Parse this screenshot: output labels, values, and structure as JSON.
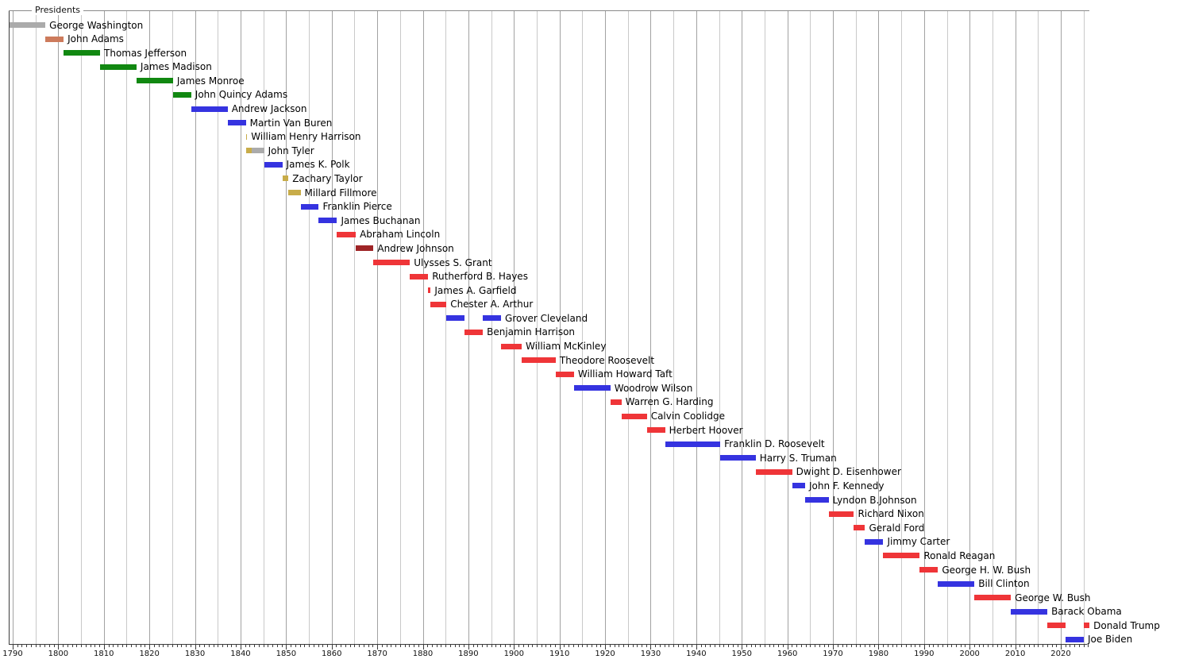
{
  "chart_data": {
    "type": "gantt",
    "title": "Presidents",
    "x_axis": {
      "min": 1789.1,
      "max": 2026.2,
      "decade_labels": [
        "1790",
        "1800",
        "1810",
        "1820",
        "1830",
        "1840",
        "1850",
        "1860",
        "1870",
        "1880",
        "1890",
        "1900",
        "1910",
        "1920",
        "1930",
        "1940",
        "1950",
        "1960",
        "1970",
        "1980",
        "1990",
        "2000",
        "2010",
        "2020"
      ],
      "gridline_interval_years": 5,
      "minor_tick_interval_years": 1,
      "grid_on": true
    },
    "palette": {
      "unaffiliated": "#ababab",
      "federalist": "#cd7b5c",
      "democratic_republican": "#118811",
      "democratic": "#3533e0",
      "whig": "#c8ac49",
      "republican": "#ef3538",
      "national_union": "#9e2426"
    },
    "presidents": [
      {
        "name": "George Washington",
        "terms": [
          {
            "start": 1789.33,
            "end": 1797.17,
            "party": "unaffiliated"
          }
        ]
      },
      {
        "name": "John Adams",
        "terms": [
          {
            "start": 1797.17,
            "end": 1801.17,
            "party": "federalist"
          }
        ]
      },
      {
        "name": "Thomas Jefferson",
        "terms": [
          {
            "start": 1801.17,
            "end": 1809.17,
            "party": "democratic_republican"
          }
        ]
      },
      {
        "name": "James Madison",
        "terms": [
          {
            "start": 1809.17,
            "end": 1817.17,
            "party": "democratic_republican"
          }
        ]
      },
      {
        "name": "James Monroe",
        "terms": [
          {
            "start": 1817.17,
            "end": 1825.17,
            "party": "democratic_republican"
          }
        ]
      },
      {
        "name": "John Quincy Adams",
        "terms": [
          {
            "start": 1825.17,
            "end": 1829.17,
            "party": "democratic_republican"
          }
        ]
      },
      {
        "name": "Andrew Jackson",
        "terms": [
          {
            "start": 1829.17,
            "end": 1837.17,
            "party": "democratic"
          }
        ]
      },
      {
        "name": "Martin Van Buren",
        "terms": [
          {
            "start": 1837.17,
            "end": 1841.17,
            "party": "democratic"
          }
        ]
      },
      {
        "name": "William Henry Harrison",
        "terms": [
          {
            "start": 1841.17,
            "end": 1841.45,
            "party": "whig"
          }
        ]
      },
      {
        "name": "John Tyler",
        "terms": [
          {
            "start": 1841.25,
            "end": 1842.4,
            "party": "whig"
          },
          {
            "start": 1842.4,
            "end": 1845.17,
            "party": "unaffiliated"
          }
        ]
      },
      {
        "name": "James K. Polk",
        "terms": [
          {
            "start": 1845.17,
            "end": 1849.17,
            "party": "democratic"
          }
        ]
      },
      {
        "name": "Zachary Taylor",
        "terms": [
          {
            "start": 1849.17,
            "end": 1850.5,
            "party": "whig"
          }
        ]
      },
      {
        "name": "Millard Fillmore",
        "terms": [
          {
            "start": 1850.5,
            "end": 1853.17,
            "party": "whig"
          }
        ]
      },
      {
        "name": "Franklin Pierce",
        "terms": [
          {
            "start": 1853.17,
            "end": 1857.17,
            "party": "democratic"
          }
        ]
      },
      {
        "name": "James Buchanan",
        "terms": [
          {
            "start": 1857.17,
            "end": 1861.17,
            "party": "democratic"
          }
        ]
      },
      {
        "name": "Abraham Lincoln",
        "terms": [
          {
            "start": 1861.17,
            "end": 1865.29,
            "party": "republican"
          }
        ]
      },
      {
        "name": "Andrew Johnson",
        "terms": [
          {
            "start": 1865.29,
            "end": 1869.17,
            "party": "national_union"
          }
        ]
      },
      {
        "name": "Ulysses S. Grant",
        "terms": [
          {
            "start": 1869.17,
            "end": 1877.17,
            "party": "republican"
          }
        ]
      },
      {
        "name": "Rutherford B. Hayes",
        "terms": [
          {
            "start": 1877.17,
            "end": 1881.17,
            "party": "republican"
          }
        ]
      },
      {
        "name": "James A. Garfield",
        "terms": [
          {
            "start": 1881.17,
            "end": 1881.72,
            "party": "republican"
          }
        ]
      },
      {
        "name": "Chester A. Arthur",
        "terms": [
          {
            "start": 1881.72,
            "end": 1885.17,
            "party": "republican"
          }
        ]
      },
      {
        "name": "Grover Cleveland",
        "terms": [
          {
            "start": 1885.17,
            "end": 1889.17,
            "party": "democratic"
          },
          {
            "start": 1893.17,
            "end": 1897.17,
            "party": "democratic"
          }
        ]
      },
      {
        "name": "Benjamin Harrison",
        "terms": [
          {
            "start": 1889.17,
            "end": 1893.17,
            "party": "republican"
          }
        ]
      },
      {
        "name": "William McKinley",
        "terms": [
          {
            "start": 1897.17,
            "end": 1901.7,
            "party": "republican"
          }
        ]
      },
      {
        "name": "Theodore Roosevelt",
        "terms": [
          {
            "start": 1901.7,
            "end": 1909.17,
            "party": "republican"
          }
        ]
      },
      {
        "name": "William Howard Taft",
        "terms": [
          {
            "start": 1909.17,
            "end": 1913.17,
            "party": "republican"
          }
        ]
      },
      {
        "name": "Woodrow Wilson",
        "terms": [
          {
            "start": 1913.17,
            "end": 1921.17,
            "party": "democratic"
          }
        ]
      },
      {
        "name": "Warren G. Harding",
        "terms": [
          {
            "start": 1921.17,
            "end": 1923.58,
            "party": "republican"
          }
        ]
      },
      {
        "name": "Calvin Coolidge",
        "terms": [
          {
            "start": 1923.58,
            "end": 1929.17,
            "party": "republican"
          }
        ]
      },
      {
        "name": "Herbert Hoover",
        "terms": [
          {
            "start": 1929.17,
            "end": 1933.17,
            "party": "republican"
          }
        ]
      },
      {
        "name": "Franklin D. Roosevelt",
        "terms": [
          {
            "start": 1933.17,
            "end": 1945.28,
            "party": "democratic"
          }
        ]
      },
      {
        "name": "Harry S. Truman",
        "terms": [
          {
            "start": 1945.28,
            "end": 1953.05,
            "party": "democratic"
          }
        ]
      },
      {
        "name": "Dwight D. Eisenhower",
        "terms": [
          {
            "start": 1953.05,
            "end": 1961.05,
            "party": "republican"
          }
        ]
      },
      {
        "name": "John F. Kennedy",
        "terms": [
          {
            "start": 1961.05,
            "end": 1963.9,
            "party": "democratic"
          }
        ]
      },
      {
        "name": "Lyndon B.Johnson",
        "terms": [
          {
            "start": 1963.9,
            "end": 1969.05,
            "party": "democratic"
          }
        ]
      },
      {
        "name": "Richard Nixon",
        "terms": [
          {
            "start": 1969.05,
            "end": 1974.6,
            "party": "republican"
          }
        ]
      },
      {
        "name": "Gerald Ford",
        "terms": [
          {
            "start": 1974.6,
            "end": 1977.05,
            "party": "republican"
          }
        ]
      },
      {
        "name": "Jimmy Carter",
        "terms": [
          {
            "start": 1977.05,
            "end": 1981.05,
            "party": "democratic"
          }
        ]
      },
      {
        "name": "Ronald Reagan",
        "terms": [
          {
            "start": 1981.05,
            "end": 1989.05,
            "party": "republican"
          }
        ]
      },
      {
        "name": "George H. W. Bush",
        "terms": [
          {
            "start": 1989.05,
            "end": 1993.05,
            "party": "republican"
          }
        ]
      },
      {
        "name": "Bill Clinton",
        "terms": [
          {
            "start": 1993.05,
            "end": 2001.05,
            "party": "democratic"
          }
        ]
      },
      {
        "name": "George W. Bush",
        "terms": [
          {
            "start": 2001.05,
            "end": 2009.05,
            "party": "republican"
          }
        ]
      },
      {
        "name": "Barack Obama",
        "terms": [
          {
            "start": 2009.05,
            "end": 2017.05,
            "party": "democratic"
          }
        ]
      },
      {
        "name": "Donald Trump",
        "terms": [
          {
            "start": 2017.05,
            "end": 2021.05,
            "party": "republican"
          },
          {
            "start": 2025.05,
            "end": 2026.3,
            "party": "republican"
          }
        ]
      },
      {
        "name": "Joe Biden",
        "terms": [
          {
            "start": 2021.05,
            "end": 2025.05,
            "party": "democratic"
          }
        ]
      }
    ]
  }
}
